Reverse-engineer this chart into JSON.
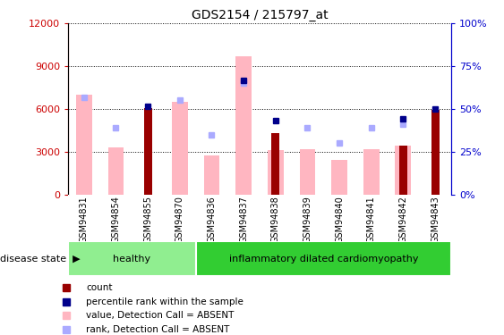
{
  "title": "GDS2154 / 215797_at",
  "samples": [
    "GSM94831",
    "GSM94854",
    "GSM94855",
    "GSM94870",
    "GSM94836",
    "GSM94837",
    "GSM94838",
    "GSM94839",
    "GSM94840",
    "GSM94841",
    "GSM94842",
    "GSM94843"
  ],
  "groups": [
    {
      "label": "healthy",
      "start": 0,
      "end": 4,
      "color": "#90EE90"
    },
    {
      "label": "inflammatory dilated cardiomyopathy",
      "start": 4,
      "end": 12,
      "color": "#32CD32"
    }
  ],
  "value_absent": [
    7000,
    3300,
    null,
    6500,
    2700,
    9700,
    3100,
    3200,
    2400,
    3200,
    3400,
    null
  ],
  "rank_absent": [
    6800,
    4700,
    null,
    6600,
    4200,
    7800,
    null,
    4700,
    3600,
    4700,
    4900,
    null
  ],
  "count": [
    null,
    null,
    6050,
    null,
    null,
    null,
    4300,
    null,
    null,
    null,
    3400,
    5900
  ],
  "percentile": [
    null,
    null,
    6200,
    null,
    null,
    8000,
    5200,
    null,
    null,
    null,
    5300,
    6000
  ],
  "ylim_left": [
    0,
    12000
  ],
  "ylim_right": [
    0,
    100
  ],
  "yticks_left": [
    0,
    3000,
    6000,
    9000,
    12000
  ],
  "yticks_right": [
    0,
    25,
    50,
    75,
    100
  ],
  "legend_items": [
    {
      "label": "count",
      "color": "#990000"
    },
    {
      "label": "percentile rank within the sample",
      "color": "#00008B"
    },
    {
      "label": "value, Detection Call = ABSENT",
      "color": "#FFB6C1"
    },
    {
      "label": "rank, Detection Call = ABSENT",
      "color": "#AAAAFF"
    }
  ],
  "left_axis_color": "#cc0000",
  "right_axis_color": "#0000cc",
  "bar_absent_color": "#FFB6C1",
  "bar_count_color": "#990000",
  "rank_absent_color": "#AAAAFF",
  "percentile_color": "#00008B",
  "tick_bg_color": "#d3d3d3",
  "group_healthy_color": "#90EE90",
  "group_idc_color": "#32CD32"
}
